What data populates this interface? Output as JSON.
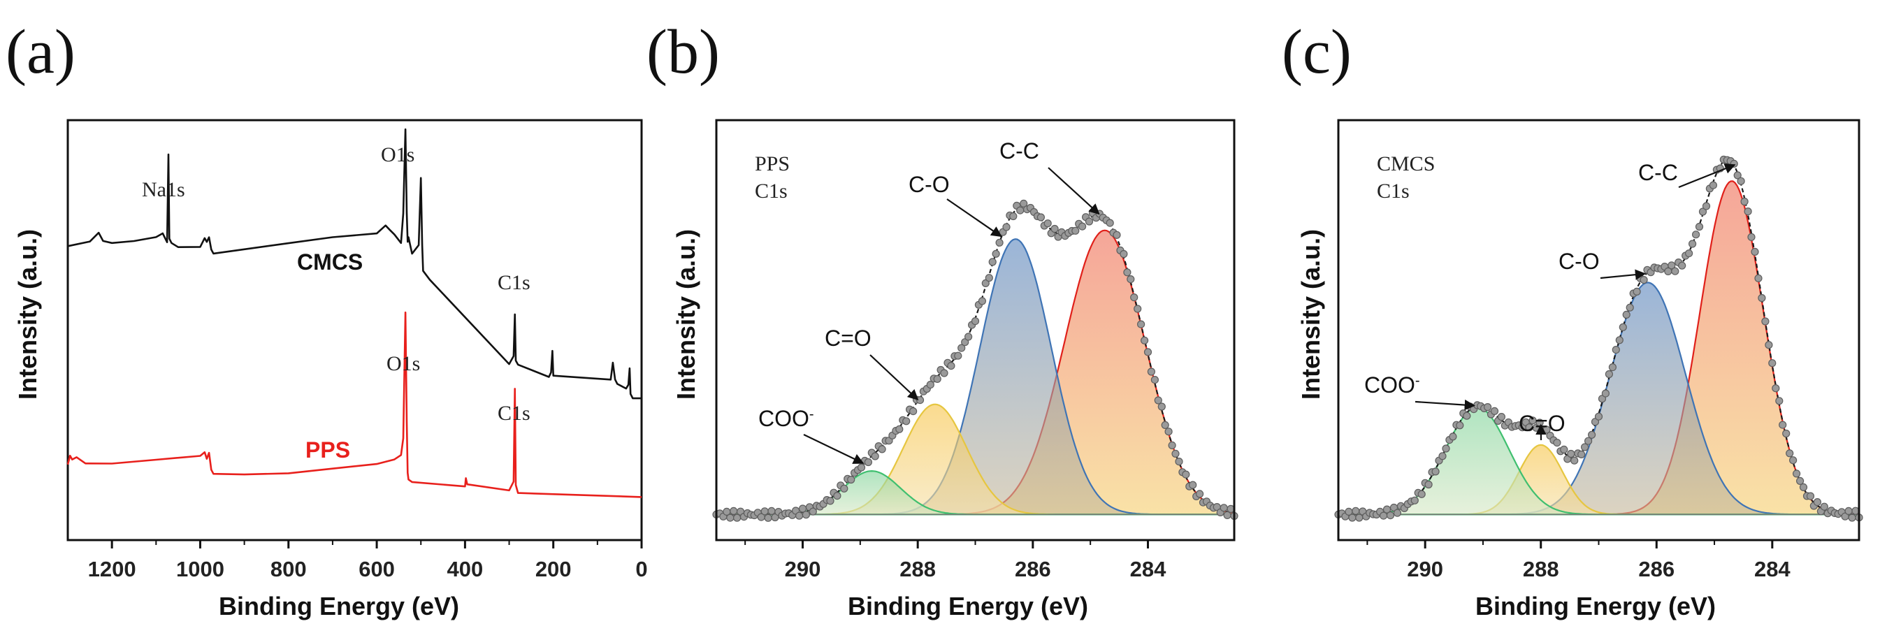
{
  "colors": {
    "cmcs_line": "#111111",
    "pps_line": "#e8201c",
    "pps_label": "#e8201c",
    "cmcs_label": "#111111",
    "points": "#9a9a9a",
    "envelope": "#1a1a1a",
    "cc_fill": "#ef9a4a",
    "co_fill": "#6f98c8",
    "ceo_fill": "#f6d67a",
    "coo_fill": "#a8dcb8",
    "cc_line": "#e0201a",
    "co_line": "#3f74b5",
    "ceo_line": "#e6c640",
    "coo_line": "#3fbf6f"
  },
  "chart_data": [
    {
      "id": "a",
      "panel_label": "(a)",
      "type": "line",
      "title": "",
      "xlabel": "Binding Energy (eV)",
      "ylabel": "Intensity (a.u.)",
      "xlim": [
        1300,
        0
      ],
      "ylim": [
        0,
        100
      ],
      "xticks": [
        1200,
        1000,
        800,
        600,
        400,
        200,
        0
      ],
      "xtick_labels": [
        "1200",
        "1000",
        "800",
        "600",
        "400",
        "200",
        "0"
      ],
      "series": [
        {
          "name": "CMCS",
          "label": "CMCS",
          "x": [
            1300,
            1250,
            1230,
            1220,
            1200,
            1150,
            1100,
            1085,
            1075,
            1072,
            1070,
            1065,
            1050,
            1000,
            990,
            985,
            980,
            975,
            970,
            900,
            800,
            700,
            600,
            580,
            570,
            560,
            545,
            540,
            535,
            532,
            530,
            528,
            520,
            505,
            500,
            497,
            495,
            480,
            300,
            290,
            287,
            285,
            280,
            210,
            205,
            202,
            200,
            70,
            65,
            60,
            55,
            35,
            30,
            27,
            25,
            20,
            0
          ],
          "y": [
            70,
            71,
            73,
            71,
            70.5,
            71,
            72,
            73,
            71,
            92,
            72,
            71,
            70,
            70,
            72,
            71,
            72,
            69,
            68,
            69,
            70.5,
            72,
            73,
            75,
            74,
            73,
            71,
            78,
            98,
            78,
            71,
            72,
            68,
            70,
            86,
            70,
            64,
            62,
            42,
            44,
            54,
            43,
            42,
            39,
            40,
            45,
            39,
            38,
            42,
            38,
            37,
            36,
            37,
            41,
            35,
            34,
            34
          ]
        },
        {
          "name": "PPS",
          "label": "PPS",
          "x": [
            1300,
            1295,
            1290,
            1280,
            1260,
            1200,
            1100,
            1000,
            990,
            985,
            980,
            975,
            970,
            900,
            800,
            700,
            600,
            560,
            545,
            540,
            535,
            532,
            530,
            528,
            520,
            400,
            398,
            395,
            300,
            290,
            287,
            285,
            280,
            0
          ],
          "y": [
            18,
            20,
            19,
            19.5,
            18,
            18,
            19,
            20,
            21,
            19.5,
            21,
            17,
            16,
            15.8,
            16,
            17,
            18,
            19,
            20,
            24,
            54,
            28,
            16,
            14.5,
            14,
            13,
            15,
            13.5,
            12,
            14,
            36,
            13,
            11,
            10
          ]
        }
      ],
      "annotations": [
        {
          "text": "Na1s",
          "x": 1070
        },
        {
          "text": "O1s",
          "x": 532
        },
        {
          "text": "C1s",
          "x": 285
        },
        {
          "text": "O1s",
          "x": 532
        },
        {
          "text": "C1s",
          "x": 285
        }
      ]
    },
    {
      "id": "b",
      "panel_label": "(b)",
      "type": "line",
      "title": "PPS C1s",
      "title_lines": [
        "PPS",
        "C1s"
      ],
      "xlabel": "Binding Energy (eV)",
      "ylabel": "Intensity (a.u.)",
      "xlim": [
        291.5,
        282.5
      ],
      "ylim": [
        0,
        1.4
      ],
      "xticks": [
        290,
        288,
        286,
        284
      ],
      "xtick_labels": [
        "290",
        "288",
        "286",
        "284"
      ],
      "baseline": 0.04,
      "peaks": [
        {
          "name": "C-C",
          "label": "C-C",
          "center": 284.75,
          "amp": 0.98,
          "sigma": 0.7,
          "color": "cc"
        },
        {
          "name": "C-O",
          "label": "C-O",
          "center": 286.3,
          "amp": 0.95,
          "sigma": 0.62,
          "color": "co"
        },
        {
          "name": "C=O",
          "label": "C=O",
          "center": 287.7,
          "amp": 0.38,
          "sigma": 0.55,
          "color": "ceo"
        },
        {
          "name": "COO-",
          "label": "COO",
          "label_sup": "-",
          "center": 288.8,
          "amp": 0.15,
          "sigma": 0.5,
          "color": "coo"
        }
      ]
    },
    {
      "id": "c",
      "panel_label": "(c)",
      "type": "line",
      "title": "CMCS C1s",
      "title_lines": [
        "CMCS",
        "C1s"
      ],
      "xlabel": "Binding Energy (eV)",
      "ylabel": "Intensity (a.u.)",
      "xlim": [
        291.5,
        282.5
      ],
      "ylim": [
        0,
        1.4
      ],
      "xticks": [
        290,
        288,
        286,
        284
      ],
      "xtick_labels": [
        "290",
        "288",
        "286",
        "284"
      ],
      "baseline": 0.04,
      "peaks": [
        {
          "name": "C-C",
          "label": "C-C",
          "center": 284.7,
          "amp": 1.15,
          "sigma": 0.55,
          "color": "cc"
        },
        {
          "name": "C-O",
          "label": "C-O",
          "center": 286.15,
          "amp": 0.8,
          "sigma": 0.65,
          "color": "co"
        },
        {
          "name": "C=O",
          "label": "C=O",
          "center": 288.0,
          "amp": 0.24,
          "sigma": 0.38,
          "color": "ceo"
        },
        {
          "name": "COO-",
          "label": "COO",
          "label_sup": "-",
          "center": 289.1,
          "amp": 0.37,
          "sigma": 0.55,
          "color": "coo"
        }
      ]
    }
  ]
}
